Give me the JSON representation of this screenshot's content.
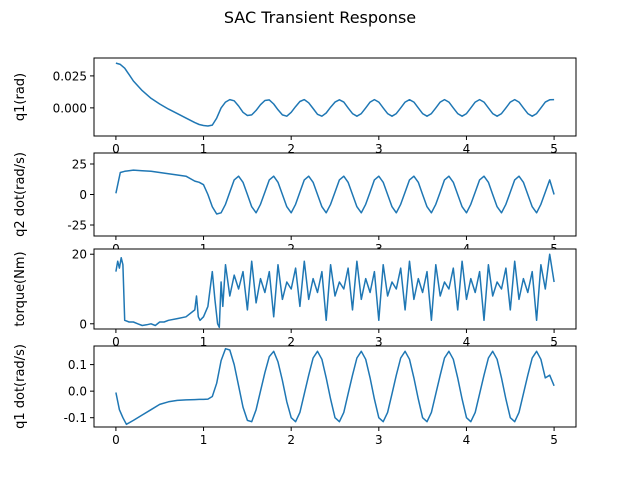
{
  "chart_data": {
    "type": "line",
    "title": "SAC Transient Response",
    "line_color": "#1f77b4",
    "xticks": [
      "0",
      "1",
      "2",
      "3",
      "4",
      "5"
    ],
    "panels": [
      {
        "ylabel": "q1(rad)",
        "xlim": [
          -0.25,
          5.25
        ],
        "ylim": [
          -0.022,
          0.039
        ],
        "yticks": [
          {
            "v": 0.025,
            "label": "0.025"
          },
          {
            "v": 0.0,
            "label": "0.000"
          }
        ],
        "x": [
          0,
          0.05,
          0.1,
          0.15,
          0.2,
          0.3,
          0.4,
          0.5,
          0.6,
          0.7,
          0.8,
          0.9,
          0.95,
          1.0,
          1.05,
          1.1,
          1.15,
          1.2,
          1.25,
          1.3,
          1.35,
          1.4,
          1.45,
          1.5,
          1.55,
          1.6,
          1.65,
          1.7,
          1.75,
          1.8,
          1.85,
          1.9,
          1.95,
          2.0,
          2.05,
          2.1,
          2.15,
          2.2,
          2.25,
          2.3,
          2.35,
          2.4,
          2.45,
          2.5,
          2.55,
          2.6,
          2.65,
          2.7,
          2.75,
          2.8,
          2.85,
          2.9,
          2.95,
          3.0,
          3.05,
          3.1,
          3.15,
          3.2,
          3.25,
          3.3,
          3.35,
          3.4,
          3.45,
          3.5,
          3.55,
          3.6,
          3.65,
          3.7,
          3.75,
          3.8,
          3.85,
          3.9,
          3.95,
          4.0,
          4.05,
          4.1,
          4.15,
          4.2,
          4.25,
          4.3,
          4.35,
          4.4,
          4.45,
          4.5,
          4.55,
          4.6,
          4.65,
          4.7,
          4.75,
          4.8,
          4.85,
          4.9,
          4.95,
          5.0
        ],
        "y": [
          0.035,
          0.034,
          0.031,
          0.026,
          0.021,
          0.0135,
          0.0075,
          0.003,
          -0.001,
          -0.0045,
          -0.008,
          -0.0115,
          -0.013,
          -0.0138,
          -0.0142,
          -0.0135,
          -0.008,
          0.0,
          0.0045,
          0.0065,
          0.0055,
          0.0015,
          -0.0035,
          -0.006,
          -0.0055,
          -0.002,
          0.0025,
          0.0058,
          0.0062,
          0.003,
          -0.0015,
          -0.0055,
          -0.0065,
          -0.0035,
          0.001,
          0.005,
          0.0065,
          0.004,
          -0.0005,
          -0.005,
          -0.0065,
          -0.004,
          0.0005,
          0.0045,
          0.0063,
          0.0045,
          0.0,
          -0.0045,
          -0.0065,
          -0.0045,
          0.0,
          0.0045,
          0.0065,
          0.0045,
          0.0,
          -0.0045,
          -0.0065,
          -0.0045,
          0.0,
          0.0045,
          0.0064,
          0.0045,
          0.0,
          -0.0045,
          -0.0065,
          -0.0045,
          0.0,
          0.0045,
          0.0065,
          0.0045,
          0.0,
          -0.0045,
          -0.0065,
          -0.0045,
          0.0,
          0.0045,
          0.0065,
          0.0045,
          0.0,
          -0.0045,
          -0.0065,
          -0.0045,
          0.0,
          0.0045,
          0.0065,
          0.0045,
          0.0,
          -0.0045,
          -0.0065,
          -0.0045,
          0.0,
          0.0045,
          0.0063,
          0.0065
        ]
      },
      {
        "ylabel": "q2 dot(rad/s)",
        "xlim": [
          -0.25,
          5.25
        ],
        "ylim": [
          -34,
          34
        ],
        "yticks": [
          {
            "v": 25,
            "label": "25"
          },
          {
            "v": 0,
            "label": "0"
          },
          {
            "v": -25,
            "label": "-25"
          }
        ],
        "x": [
          0,
          0.05,
          0.1,
          0.2,
          0.3,
          0.4,
          0.5,
          0.6,
          0.7,
          0.8,
          0.9,
          0.95,
          1.0,
          1.05,
          1.1,
          1.15,
          1.2,
          1.25,
          1.3,
          1.35,
          1.4,
          1.45,
          1.5,
          1.55,
          1.6,
          1.65,
          1.7,
          1.75,
          1.8,
          1.85,
          1.9,
          1.95,
          2.0,
          2.05,
          2.1,
          2.15,
          2.2,
          2.25,
          2.3,
          2.35,
          2.4,
          2.45,
          2.5,
          2.55,
          2.6,
          2.65,
          2.7,
          2.75,
          2.8,
          2.85,
          2.9,
          2.95,
          3.0,
          3.05,
          3.1,
          3.15,
          3.2,
          3.25,
          3.3,
          3.35,
          3.4,
          3.45,
          3.5,
          3.55,
          3.6,
          3.65,
          3.7,
          3.75,
          3.8,
          3.85,
          3.9,
          3.95,
          4.0,
          4.05,
          4.1,
          4.15,
          4.2,
          4.25,
          4.3,
          4.35,
          4.4,
          4.45,
          4.5,
          4.55,
          4.6,
          4.65,
          4.7,
          4.75,
          4.8,
          4.85,
          4.9,
          4.95,
          5.0
        ],
        "y": [
          1,
          18,
          19,
          20,
          19.5,
          19,
          18,
          17,
          16,
          15,
          11,
          10,
          8,
          0,
          -10,
          -16,
          -15,
          -8,
          2,
          12,
          15,
          10,
          0,
          -10,
          -15,
          -8,
          2,
          12,
          15,
          10,
          0,
          -10,
          -15,
          -8,
          2,
          12,
          15,
          10,
          0,
          -10,
          -15,
          -8,
          2,
          12,
          15,
          10,
          0,
          -10,
          -15,
          -8,
          2,
          12,
          15,
          10,
          0,
          -10,
          -15,
          -8,
          2,
          12,
          15,
          10,
          0,
          -10,
          -15,
          -8,
          2,
          12,
          15,
          10,
          0,
          -10,
          -15,
          -8,
          2,
          12,
          15,
          10,
          0,
          -10,
          -15,
          -8,
          2,
          12,
          15,
          10,
          0,
          -10,
          -15,
          -8,
          2,
          12,
          0
        ]
      },
      {
        "ylabel": "torque(Nm)",
        "xlim": [
          -0.25,
          5.25
        ],
        "ylim": [
          -1.5,
          21.5
        ],
        "yticks": [
          {
            "v": 20,
            "label": "20"
          },
          {
            "v": 0,
            "label": "0"
          }
        ],
        "x": [
          0,
          0.02,
          0.04,
          0.06,
          0.08,
          0.1,
          0.15,
          0.2,
          0.25,
          0.3,
          0.35,
          0.4,
          0.45,
          0.5,
          0.55,
          0.6,
          0.7,
          0.8,
          0.9,
          0.92,
          0.94,
          0.96,
          1.0,
          1.05,
          1.1,
          1.13,
          1.16,
          1.18,
          1.2,
          1.22,
          1.25,
          1.3,
          1.35,
          1.4,
          1.45,
          1.5,
          1.55,
          1.6,
          1.65,
          1.7,
          1.75,
          1.8,
          1.85,
          1.9,
          1.95,
          2.0,
          2.05,
          2.1,
          2.15,
          2.2,
          2.25,
          2.3,
          2.35,
          2.4,
          2.45,
          2.5,
          2.55,
          2.6,
          2.65,
          2.7,
          2.75,
          2.8,
          2.85,
          2.9,
          2.95,
          3.0,
          3.05,
          3.1,
          3.15,
          3.2,
          3.25,
          3.3,
          3.35,
          3.4,
          3.45,
          3.5,
          3.55,
          3.6,
          3.65,
          3.7,
          3.75,
          3.8,
          3.85,
          3.9,
          3.95,
          4.0,
          4.05,
          4.1,
          4.15,
          4.2,
          4.25,
          4.3,
          4.35,
          4.4,
          4.45,
          4.5,
          4.55,
          4.6,
          4.65,
          4.7,
          4.75,
          4.8,
          4.85,
          4.9,
          4.95,
          5.0
        ],
        "y": [
          15,
          18,
          16,
          19,
          17,
          1,
          0.5,
          0.5,
          0,
          -0.5,
          -0.3,
          0,
          -0.5,
          0.5,
          0.5,
          1,
          1.5,
          2,
          4,
          8,
          2,
          1,
          2,
          5,
          15,
          7,
          0,
          -1,
          12,
          5,
          17,
          8,
          14,
          10,
          15,
          4,
          18,
          6,
          13,
          9,
          15,
          2,
          17,
          7,
          12,
          10,
          16,
          5,
          18,
          7,
          13,
          9,
          15,
          1,
          17,
          8,
          12,
          10,
          16,
          4,
          18,
          7,
          13,
          9,
          15,
          1,
          17,
          8,
          12,
          10,
          16,
          4,
          18,
          7,
          13,
          9,
          15,
          1,
          17,
          8,
          12,
          10,
          16,
          4,
          18,
          7,
          13,
          9,
          15,
          1,
          17,
          8,
          12,
          10,
          16,
          4,
          18,
          7,
          13,
          9,
          15,
          1,
          17,
          10,
          20,
          12
        ]
      },
      {
        "ylabel": "q1 dot(rad/s)",
        "xlim": [
          -0.25,
          5.25
        ],
        "ylim": [
          -0.135,
          0.17
        ],
        "yticks": [
          {
            "v": 0.1,
            "label": "0.1"
          },
          {
            "v": 0.0,
            "label": "0.0"
          },
          {
            "v": -0.1,
            "label": "-0.1"
          }
        ],
        "x": [
          0,
          0.04,
          0.08,
          0.12,
          0.2,
          0.3,
          0.4,
          0.5,
          0.6,
          0.7,
          0.8,
          0.9,
          0.95,
          1.0,
          1.05,
          1.1,
          1.15,
          1.2,
          1.25,
          1.3,
          1.35,
          1.4,
          1.45,
          1.5,
          1.55,
          1.6,
          1.65,
          1.7,
          1.75,
          1.8,
          1.85,
          1.9,
          1.95,
          2.0,
          2.05,
          2.1,
          2.15,
          2.2,
          2.25,
          2.3,
          2.35,
          2.4,
          2.45,
          2.5,
          2.55,
          2.6,
          2.65,
          2.7,
          2.75,
          2.8,
          2.85,
          2.9,
          2.95,
          3.0,
          3.05,
          3.1,
          3.15,
          3.2,
          3.25,
          3.3,
          3.35,
          3.4,
          3.45,
          3.5,
          3.55,
          3.6,
          3.65,
          3.7,
          3.75,
          3.8,
          3.85,
          3.9,
          3.95,
          4.0,
          4.05,
          4.1,
          4.15,
          4.2,
          4.25,
          4.3,
          4.35,
          4.4,
          4.45,
          4.5,
          4.55,
          4.6,
          4.65,
          4.7,
          4.75,
          4.8,
          4.85,
          4.9,
          4.95,
          5.0
        ],
        "y": [
          -0.005,
          -0.07,
          -0.1,
          -0.125,
          -0.11,
          -0.09,
          -0.07,
          -0.05,
          -0.04,
          -0.035,
          -0.033,
          -0.032,
          -0.031,
          -0.031,
          -0.03,
          -0.02,
          0.03,
          0.115,
          0.16,
          0.155,
          0.1,
          0.02,
          -0.06,
          -0.11,
          -0.115,
          -0.07,
          0.0,
          0.07,
          0.13,
          0.15,
          0.11,
          0.04,
          -0.04,
          -0.1,
          -0.115,
          -0.08,
          -0.01,
          0.06,
          0.125,
          0.15,
          0.12,
          0.05,
          -0.03,
          -0.1,
          -0.115,
          -0.08,
          -0.01,
          0.06,
          0.125,
          0.15,
          0.12,
          0.05,
          -0.03,
          -0.1,
          -0.115,
          -0.08,
          -0.01,
          0.06,
          0.125,
          0.15,
          0.12,
          0.05,
          -0.03,
          -0.1,
          -0.115,
          -0.08,
          -0.01,
          0.06,
          0.125,
          0.15,
          0.12,
          0.05,
          -0.03,
          -0.1,
          -0.115,
          -0.08,
          -0.01,
          0.06,
          0.125,
          0.15,
          0.12,
          0.05,
          -0.03,
          -0.1,
          -0.115,
          -0.08,
          -0.01,
          0.06,
          0.125,
          0.15,
          0.12,
          0.05,
          0.06,
          0.02
        ]
      }
    ]
  }
}
